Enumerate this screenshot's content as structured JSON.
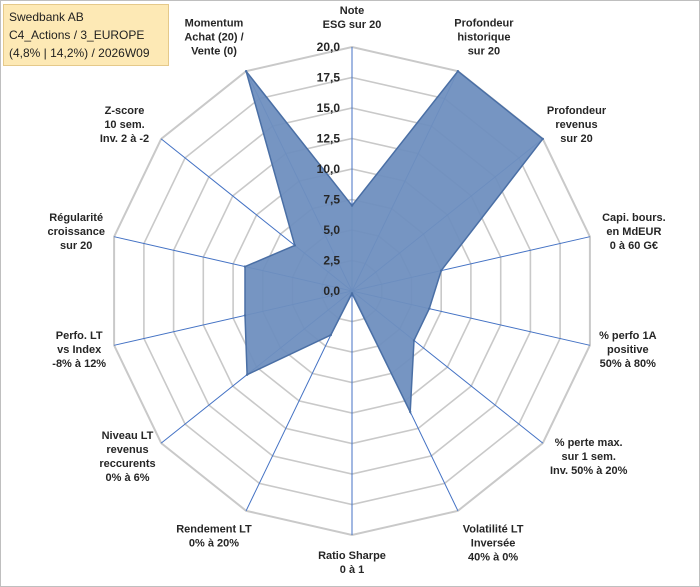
{
  "info_box": {
    "line1": "Swedbank AB",
    "line2": "C4_Actions / 3_EUROPE",
    "line3": "(4,8% | 14,2%) / 2026W09"
  },
  "chart_data": {
    "type": "radar",
    "title": "",
    "rmin": 0,
    "rmax": 20,
    "ticks": [
      "0,0",
      "2,5",
      "5,0",
      "7,5",
      "10,0",
      "12,5",
      "15,0",
      "17,5",
      "20,0"
    ],
    "grid": true,
    "legend": "none",
    "axes": [
      {
        "label": [
          "Note",
          "ESG sur 20"
        ],
        "value": 7
      },
      {
        "label": [
          "Profondeur",
          "historique",
          "sur 20"
        ],
        "value": 20
      },
      {
        "label": [
          "Profondeur",
          "revenus",
          "sur 20"
        ],
        "value": 20
      },
      {
        "label": [
          "Capi. bours.",
          "en MdEUR",
          "0 à 60 G€"
        ],
        "value": 7.5
      },
      {
        "label": [
          "% perfo 1A",
          "positive",
          "50% à 80%"
        ],
        "value": 6.5
      },
      {
        "label": [
          "% perte max.",
          "sur 1 sem.",
          "Inv. 50% à 20%"
        ],
        "value": 6.5
      },
      {
        "label": [
          "Volatilité LT",
          "Inversée",
          "40% à 0%"
        ],
        "value": 11
      },
      {
        "label": [
          "Ratio Sharpe",
          "0 à 1"
        ],
        "value": 0.2
      },
      {
        "label": [
          "Rendement LT",
          "0% à 20%"
        ],
        "value": 4
      },
      {
        "label": [
          "Niveau LT",
          "revenus",
          "reccurents",
          "0% à 6%"
        ],
        "value": 11
      },
      {
        "label": [
          "Perfo. LT",
          "vs Index",
          "-8% à 12%"
        ],
        "value": 9
      },
      {
        "label": [
          "Régularité",
          "croissance",
          "sur 20"
        ],
        "value": 9
      },
      {
        "label": [
          "Z-score",
          "10 sem.",
          "Inv. 2 à -2"
        ],
        "value": 6
      },
      {
        "label": [
          "Momentum",
          "Achat (20) /",
          "Vente (0)"
        ],
        "value": 20
      }
    ],
    "colors": {
      "fill": "#6f8fbf",
      "stroke": "#4a6fa5",
      "grid": "#c9c9c9",
      "spoke": "#4472c4"
    }
  }
}
